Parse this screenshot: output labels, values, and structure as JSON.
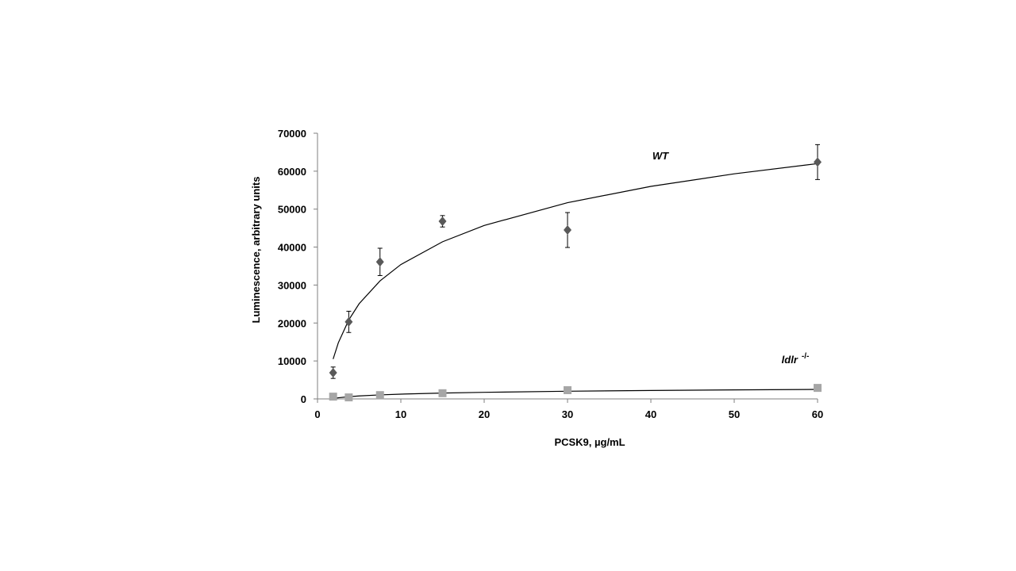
{
  "chart_data": {
    "type": "scatter",
    "x_label": "PCSK9, µg/mL",
    "y_label": "Luminescence, arbitrary units",
    "xlim": [
      0,
      60
    ],
    "xticks": [
      0,
      10,
      20,
      30,
      40,
      50,
      60
    ],
    "ylim": [
      0,
      70000
    ],
    "yticks": [
      0,
      10000,
      20000,
      30000,
      40000,
      50000,
      60000,
      70000
    ],
    "series": [
      {
        "name": "WT",
        "color": "#595959",
        "marker": "diamond",
        "x": [
          1.875,
          3.75,
          7.5,
          15,
          30,
          60
        ],
        "values": [
          6900,
          20300,
          36100,
          46800,
          44500,
          62400
        ],
        "errors": [
          1500,
          2800,
          3600,
          1500,
          4600,
          4600
        ],
        "fit_x": [
          1.875,
          2.5,
          3.75,
          5,
          7.5,
          10,
          15,
          20,
          30,
          40,
          50,
          60
        ],
        "fit_values": [
          10500,
          14800,
          20800,
          25100,
          31100,
          35400,
          41400,
          45700,
          51700,
          56000,
          59300,
          62000
        ]
      },
      {
        "name": "ldlr",
        "name_superscript": "-/-",
        "color": "#a6a6a6",
        "marker": "square",
        "x": [
          1.875,
          3.75,
          7.5,
          15,
          30,
          60
        ],
        "values": [
          600,
          400,
          1000,
          1500,
          2300,
          2900
        ],
        "fit_x": [
          1.875,
          2.5,
          3.75,
          5,
          7.5,
          10,
          15,
          20,
          30,
          40,
          50,
          60
        ],
        "fit_values": [
          100,
          300,
          580,
          780,
          1060,
          1260,
          1540,
          1740,
          2020,
          2220,
          2380,
          2500
        ]
      }
    ]
  }
}
